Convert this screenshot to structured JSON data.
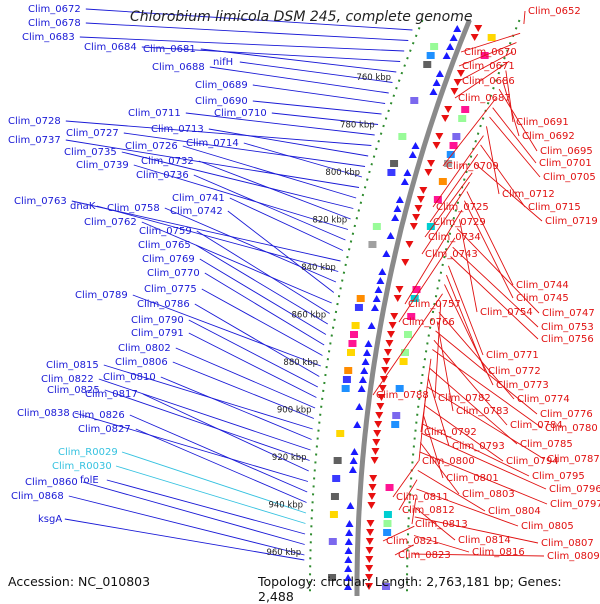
{
  "title": "Chlorobium limicola DSM 245, complete genome",
  "accession": "Accession: NC_010803",
  "topology": "Topology: circular; Length: 2,763,181 bp; Genes: 2,488",
  "colors": {
    "left_labels": "#1a1ad6",
    "rna_labels": "#36c2e0",
    "right_labels": "#e01010",
    "backbone": "#8a8a8a",
    "dotted": "#2e8b2e"
  },
  "kbp_ticks": [
    "760 kbp",
    "780 kbp",
    "800 kbp",
    "820 kbp",
    "840 kbp",
    "860 kbp",
    "880 kbp",
    "900 kbp",
    "920 kbp",
    "940 kbp",
    "960 kbp"
  ],
  "left_labels": [
    "Clim_0672",
    "Clim_0678",
    "Clim_0683",
    "Clim_0684",
    "Clim_0681",
    "nifH",
    "Clim_0688",
    "Clim_0689",
    "Clim_0690",
    "Clim_0710",
    "Clim_0711",
    "Clim_0728",
    "Clim_0713",
    "Clim_0727",
    "Clim_0714",
    "Clim_0737",
    "Clim_0726",
    "Clim_0735",
    "Clim_0732",
    "Clim_0739",
    "Clim_0736",
    "Clim_0741",
    "Clim_0763",
    "dnaK",
    "Clim_0758",
    "Clim_0742",
    "Clim_0762",
    "Clim_0759",
    "Clim_0765",
    "Clim_0769",
    "Clim_0770",
    "Clim_0775",
    "Clim_0789",
    "Clim_0786",
    "Clim_0790",
    "Clim_0791",
    "Clim_0802",
    "Clim_0806",
    "Clim_0815",
    "Clim_0810",
    "Clim_0822",
    "Clim_0825",
    "Clim_0817",
    "Clim_0838",
    "Clim_0826",
    "Clim_0827",
    "Clim_R0029",
    "Clim_R0030",
    "folE",
    "Clim_0860",
    "Clim_0868",
    "ksgA"
  ],
  "right_labels": [
    "Clim_0652",
    "Clim_0670",
    "Clim_0671",
    "Clim_0686",
    "Clim_0687",
    "Clim_0691",
    "Clim_0692",
    "Clim_0695",
    "Clim_0709",
    "Clim_0701",
    "Clim_0705",
    "Clim_0712",
    "Clim_0725",
    "Clim_0715",
    "Clim_0729",
    "Clim_0719",
    "Clim_0734",
    "Clim_0743",
    "Clim_0744",
    "Clim_0745",
    "Clim_0757",
    "Clim_0754",
    "Clim_0747",
    "Clim_0766",
    "Clim_0753",
    "Clim_0756",
    "Clim_0771",
    "Clim_0772",
    "Clim_0773",
    "Clim_0788",
    "Clim_0782",
    "Clim_0774",
    "Clim_0783",
    "Clim_0776",
    "Clim_0784",
    "Clim_0780",
    "Clim_0792",
    "Clim_0785",
    "Clim_0793",
    "Clim_0787",
    "Clim_0800",
    "Clim_0794",
    "Clim_0801",
    "Clim_0795",
    "Clim_0796",
    "Clim_0803",
    "Clim_0797",
    "Clim_0811",
    "Clim_0804",
    "Clim_0812",
    "Clim_0805",
    "Clim_0813",
    "Clim_0814",
    "Clim_0807",
    "Clim_0821",
    "Clim_0816",
    "Clim_0823",
    "Clim_0809"
  ]
}
